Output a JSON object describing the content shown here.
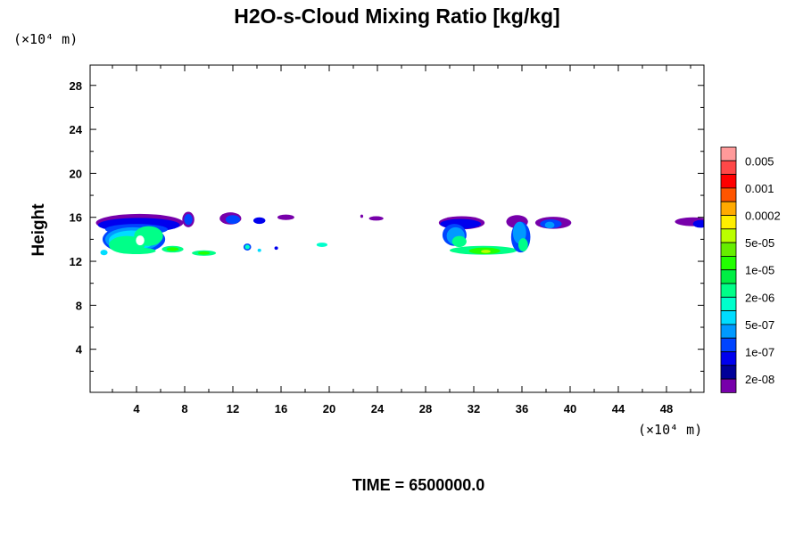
{
  "chart_data": {
    "type": "heatmap",
    "title": "H2O-s-Cloud Mixing Ratio [kg/kg]",
    "xlabel": "",
    "ylabel": "Height",
    "x_unit_label": "(×10⁴ m)",
    "y_unit_label": "(×10⁴ m)",
    "footer": "TIME = 6500000.0",
    "xlim": [
      0,
      51.2
    ],
    "ylim": [
      0,
      30
    ],
    "x_ticks": [
      4,
      8,
      12,
      16,
      20,
      24,
      28,
      32,
      36,
      40,
      44,
      48
    ],
    "y_ticks": [
      4,
      8,
      12,
      16,
      20,
      24,
      28
    ],
    "colorbar": {
      "colors": [
        "#ff9a9a",
        "#ff4848",
        "#ff0000",
        "#ff5500",
        "#ffaa00",
        "#ffee00",
        "#bbff00",
        "#66ee00",
        "#22ff00",
        "#00ee44",
        "#00ff88",
        "#00ffcc",
        "#00ddff",
        "#0099ff",
        "#0044ff",
        "#0000ee",
        "#000099",
        "#7700aa"
      ],
      "labels": [
        "0.005",
        "0.001",
        "0.0002",
        "5e-05",
        "1e-05",
        "2e-06",
        "5e-07",
        "1e-07",
        "2e-08"
      ]
    },
    "cloud_regions": [
      {
        "cx": 4.26,
        "cy": 15.5,
        "rx": 3.63,
        "ry": 0.81,
        "color": "#7700aa"
      },
      {
        "cx": 3.78,
        "cy": 14.0,
        "rx": 2.6,
        "ry": 1.3,
        "color": "#0044ff"
      },
      {
        "cx": 4.2,
        "cy": 15.3,
        "rx": 3.4,
        "ry": 0.65,
        "color": "#0000ee"
      },
      {
        "cx": 4.0,
        "cy": 14.9,
        "rx": 2.6,
        "ry": 0.5,
        "color": "#0044ff"
      },
      {
        "cx": 3.7,
        "cy": 14.0,
        "rx": 2.3,
        "ry": 1.1,
        "color": "#0099ff"
      },
      {
        "cx": 3.6,
        "cy": 13.9,
        "rx": 1.9,
        "ry": 0.9,
        "color": "#00ddff"
      },
      {
        "cx": 3.2,
        "cy": 13.5,
        "rx": 1.5,
        "ry": 0.8,
        "color": "#00ff88"
      },
      {
        "cx": 5.0,
        "cy": 14.3,
        "rx": 1.2,
        "ry": 0.9,
        "color": "#00ff88"
      },
      {
        "cx": 4.0,
        "cy": 12.95,
        "rx": 1.6,
        "ry": 0.3,
        "color": "#00ff88"
      },
      {
        "cx": 4.3,
        "cy": 13.9,
        "rx": 0.35,
        "ry": 0.45,
        "color": "#ffffff"
      },
      {
        "cx": 1.3,
        "cy": 12.8,
        "rx": 0.3,
        "ry": 0.25,
        "color": "#00ddff"
      },
      {
        "cx": 8.3,
        "cy": 15.8,
        "rx": 0.5,
        "ry": 0.7,
        "color": "#7700aa"
      },
      {
        "cx": 8.3,
        "cy": 15.8,
        "rx": 0.35,
        "ry": 0.5,
        "color": "#0044ff"
      },
      {
        "cx": 11.8,
        "cy": 15.9,
        "rx": 0.9,
        "ry": 0.55,
        "color": "#7700aa"
      },
      {
        "cx": 12.0,
        "cy": 15.8,
        "rx": 0.6,
        "ry": 0.4,
        "color": "#0044ff"
      },
      {
        "cx": 14.2,
        "cy": 15.7,
        "rx": 0.5,
        "ry": 0.3,
        "color": "#0000ee"
      },
      {
        "cx": 16.4,
        "cy": 16.0,
        "rx": 0.7,
        "ry": 0.25,
        "color": "#7700aa"
      },
      {
        "cx": 22.7,
        "cy": 16.1,
        "rx": 0.12,
        "ry": 0.15,
        "color": "#7700aa"
      },
      {
        "cx": 23.9,
        "cy": 15.9,
        "rx": 0.6,
        "ry": 0.2,
        "color": "#7700aa"
      },
      {
        "cx": 7.0,
        "cy": 13.1,
        "rx": 0.9,
        "ry": 0.3,
        "color": "#00ff88"
      },
      {
        "cx": 7.0,
        "cy": 13.1,
        "rx": 0.5,
        "ry": 0.18,
        "color": "#22ff00"
      },
      {
        "cx": 9.6,
        "cy": 12.75,
        "rx": 1.0,
        "ry": 0.25,
        "color": "#00ff88"
      },
      {
        "cx": 9.6,
        "cy": 12.75,
        "rx": 0.5,
        "ry": 0.15,
        "color": "#22ff00"
      },
      {
        "cx": 13.2,
        "cy": 13.3,
        "rx": 0.32,
        "ry": 0.32,
        "color": "#0044ff"
      },
      {
        "cx": 13.2,
        "cy": 13.3,
        "rx": 0.2,
        "ry": 0.2,
        "color": "#00ffcc"
      },
      {
        "cx": 14.2,
        "cy": 13.0,
        "rx": 0.15,
        "ry": 0.15,
        "color": "#00ddff"
      },
      {
        "cx": 15.6,
        "cy": 13.2,
        "rx": 0.15,
        "ry": 0.15,
        "color": "#0000ee"
      },
      {
        "cx": 19.4,
        "cy": 13.5,
        "rx": 0.45,
        "ry": 0.2,
        "color": "#00ffcc"
      },
      {
        "cx": 31.0,
        "cy": 15.5,
        "rx": 1.9,
        "ry": 0.6,
        "color": "#7700aa"
      },
      {
        "cx": 30.9,
        "cy": 15.4,
        "rx": 1.7,
        "ry": 0.45,
        "color": "#0000ee"
      },
      {
        "cx": 30.4,
        "cy": 14.4,
        "rx": 1.0,
        "ry": 1.0,
        "color": "#0044ff"
      },
      {
        "cx": 30.5,
        "cy": 14.3,
        "rx": 0.75,
        "ry": 0.8,
        "color": "#0099ff"
      },
      {
        "cx": 30.8,
        "cy": 13.8,
        "rx": 0.6,
        "ry": 0.5,
        "color": "#00ff88"
      },
      {
        "cx": 32.8,
        "cy": 13.0,
        "rx": 2.8,
        "ry": 0.4,
        "color": "#00ff88"
      },
      {
        "cx": 32.9,
        "cy": 12.95,
        "rx": 1.3,
        "ry": 0.3,
        "color": "#22ff00"
      },
      {
        "cx": 33.0,
        "cy": 12.9,
        "rx": 0.4,
        "ry": 0.15,
        "color": "#bbff00"
      },
      {
        "cx": 35.6,
        "cy": 15.6,
        "rx": 0.9,
        "ry": 0.6,
        "color": "#7700aa"
      },
      {
        "cx": 35.9,
        "cy": 14.2,
        "rx": 0.8,
        "ry": 1.4,
        "color": "#0044ff"
      },
      {
        "cx": 35.8,
        "cy": 14.6,
        "rx": 0.55,
        "ry": 1.0,
        "color": "#0099ff"
      },
      {
        "cx": 36.1,
        "cy": 13.5,
        "rx": 0.4,
        "ry": 0.6,
        "color": "#00ff88"
      },
      {
        "cx": 38.6,
        "cy": 15.5,
        "rx": 1.5,
        "ry": 0.55,
        "color": "#7700aa"
      },
      {
        "cx": 38.4,
        "cy": 15.4,
        "rx": 0.9,
        "ry": 0.4,
        "color": "#0044ff"
      },
      {
        "cx": 38.3,
        "cy": 15.3,
        "rx": 0.4,
        "ry": 0.3,
        "color": "#0099ff"
      },
      {
        "cx": 50.2,
        "cy": 15.6,
        "rx": 1.5,
        "ry": 0.4,
        "color": "#7700aa"
      },
      {
        "cx": 50.8,
        "cy": 15.4,
        "rx": 0.6,
        "ry": 0.35,
        "color": "#0000ee"
      }
    ]
  }
}
